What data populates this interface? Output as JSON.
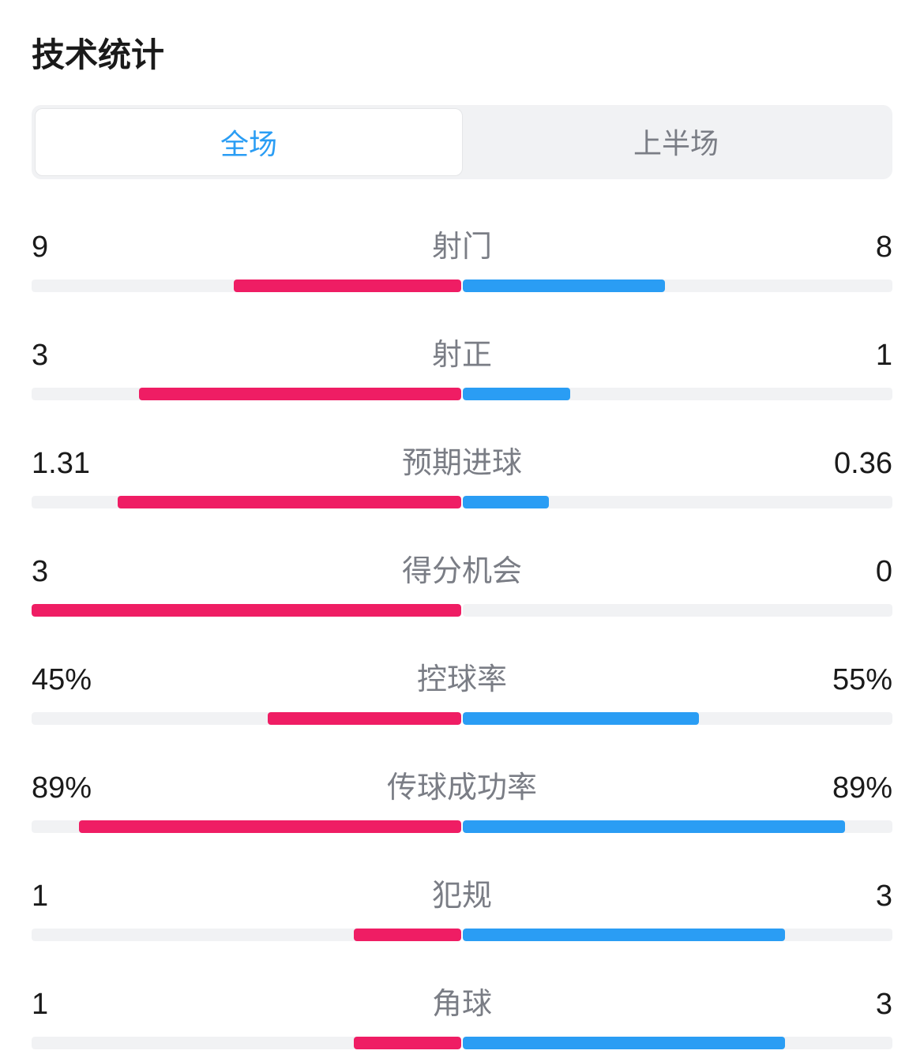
{
  "title": "技术统计",
  "colors": {
    "left": "#ef1d64",
    "right": "#2a9df4",
    "track": "#f1f2f4",
    "tab_active_text": "#2a9df4",
    "tab_inactive_text": "#7a7d85",
    "tab_bg": "#f1f2f4",
    "text_primary": "#1a1a1a",
    "text_secondary": "#7a7d85"
  },
  "tabs": [
    {
      "label": "全场",
      "active": true
    },
    {
      "label": "上半场",
      "active": false
    }
  ],
  "stats": [
    {
      "name": "射门",
      "left_label": "9",
      "right_label": "8",
      "left_pct": 53,
      "right_pct": 47
    },
    {
      "name": "射正",
      "left_label": "3",
      "right_label": "1",
      "left_pct": 75,
      "right_pct": 25
    },
    {
      "name": "预期进球",
      "left_label": "1.31",
      "right_label": "0.36",
      "left_pct": 80,
      "right_pct": 20
    },
    {
      "name": "得分机会",
      "left_label": "3",
      "right_label": "0",
      "left_pct": 100,
      "right_pct": 0
    },
    {
      "name": "控球率",
      "left_label": "45%",
      "right_label": "55%",
      "left_pct": 45,
      "right_pct": 55
    },
    {
      "name": "传球成功率",
      "left_label": "89%",
      "right_label": "89%",
      "left_pct": 89,
      "right_pct": 89
    },
    {
      "name": "犯规",
      "left_label": "1",
      "right_label": "3",
      "left_pct": 25,
      "right_pct": 75
    },
    {
      "name": "角球",
      "left_label": "1",
      "right_label": "3",
      "left_pct": 25,
      "right_pct": 75
    }
  ]
}
